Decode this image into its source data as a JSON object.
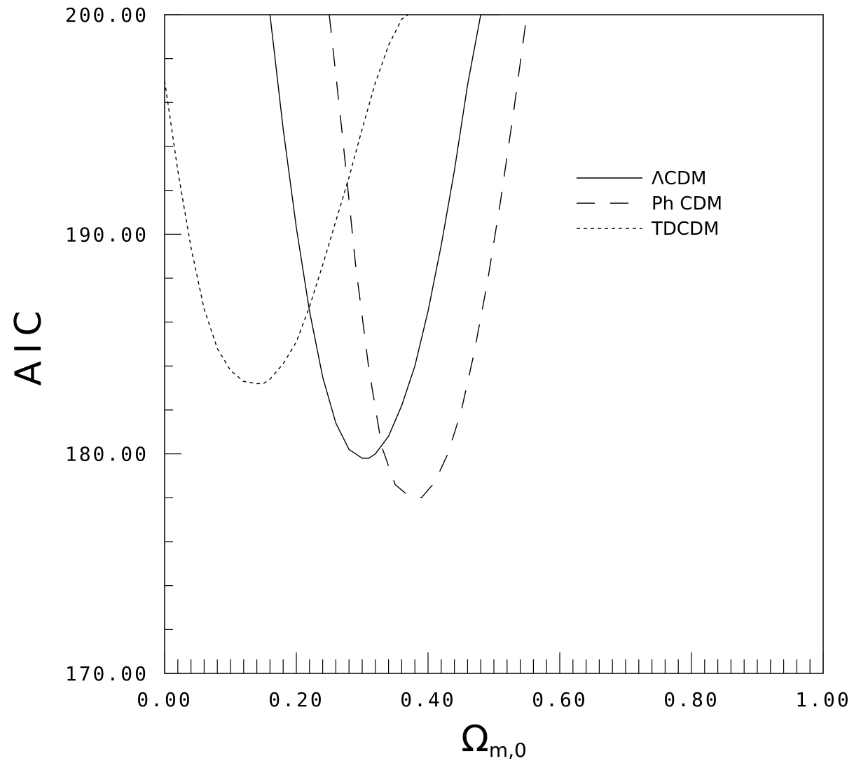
{
  "chart_data": {
    "type": "line",
    "title": "",
    "xlabel": "Ω",
    "xlabel_subscript": "m,0",
    "ylabel": "AIC",
    "xlim": [
      0.0,
      1.0
    ],
    "ylim": [
      170.0,
      200.0
    ],
    "x_major_ticks": [
      0.0,
      0.2,
      0.4,
      0.6,
      0.8,
      1.0
    ],
    "x_tick_labels": [
      "0.00",
      "0.20",
      "0.40",
      "0.60",
      "0.80",
      "1.00"
    ],
    "y_major_ticks": [
      170.0,
      180.0,
      190.0,
      200.0
    ],
    "y_tick_labels": [
      "170.00",
      "180.00",
      "190.00",
      "200.00"
    ],
    "x_minor_step": 0.02,
    "y_minor_step": 2.0,
    "grid": false,
    "legend_position": "top-right",
    "series": [
      {
        "name": "ΛCDM",
        "style": "solid",
        "color": "#000000",
        "x": [
          0.16,
          0.18,
          0.2,
          0.22,
          0.24,
          0.26,
          0.28,
          0.3,
          0.31,
          0.32,
          0.34,
          0.36,
          0.38,
          0.4,
          0.42,
          0.44,
          0.46,
          0.48,
          0.5,
          0.51
        ],
        "y": [
          200.0,
          194.8,
          190.3,
          186.5,
          183.5,
          181.4,
          180.2,
          179.8,
          179.8,
          180.0,
          180.8,
          182.2,
          184.0,
          186.5,
          189.5,
          192.9,
          196.8,
          200.0,
          200.0,
          200.0
        ]
      },
      {
        "name": "Ph CDM",
        "style": "dashed",
        "color": "#000000",
        "x": [
          0.25,
          0.27,
          0.29,
          0.31,
          0.33,
          0.35,
          0.37,
          0.39,
          0.41,
          0.43,
          0.45,
          0.47,
          0.49,
          0.51,
          0.53,
          0.55
        ],
        "y": [
          200.0,
          194.5,
          188.6,
          183.9,
          180.3,
          178.6,
          178.1,
          178.0,
          178.7,
          180.0,
          181.9,
          184.6,
          187.8,
          191.5,
          195.6,
          200.0
        ]
      },
      {
        "name": "TDCDM",
        "style": "dotted",
        "color": "#000000",
        "x": [
          0.0,
          0.02,
          0.04,
          0.06,
          0.08,
          0.1,
          0.12,
          0.14,
          0.15,
          0.16,
          0.18,
          0.2,
          0.22,
          0.24,
          0.26,
          0.28,
          0.3,
          0.32,
          0.34,
          0.36,
          0.37
        ],
        "y": [
          197.0,
          192.9,
          189.4,
          186.6,
          184.8,
          183.8,
          183.3,
          183.2,
          183.2,
          183.4,
          184.1,
          185.1,
          186.7,
          188.6,
          190.6,
          192.6,
          194.8,
          196.9,
          198.6,
          199.8,
          200.0
        ]
      }
    ]
  }
}
